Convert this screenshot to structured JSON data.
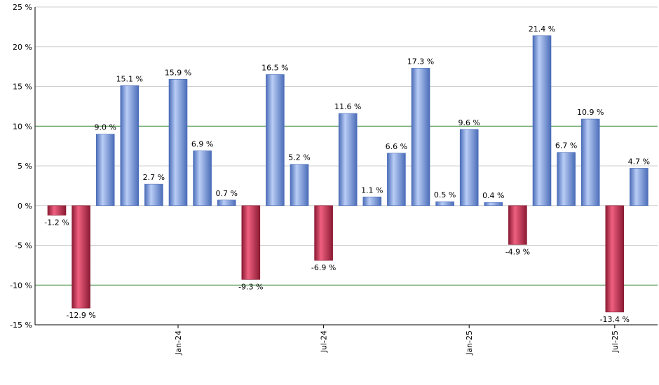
{
  "chart_data": {
    "type": "bar",
    "title": "",
    "xlabel": "",
    "ylabel": "",
    "ylim": [
      -15,
      25
    ],
    "y_ticks": [
      25,
      20,
      15,
      10,
      5,
      0,
      -5,
      -10,
      -15
    ],
    "y_tick_labels": [
      "25 %",
      "20 %",
      "15 %",
      "10 %",
      "5 %",
      "0 %",
      "-5 %",
      "-10 %",
      "-15 %"
    ],
    "highlight_lines": [
      10,
      -10
    ],
    "values": [
      -1.2,
      -12.9,
      9.0,
      15.1,
      2.7,
      15.9,
      6.9,
      0.7,
      -9.3,
      16.5,
      5.2,
      -6.9,
      11.6,
      1.1,
      6.6,
      17.3,
      0.5,
      9.6,
      0.4,
      -4.9,
      21.4,
      6.7,
      10.9,
      -13.4,
      4.7
    ],
    "value_labels": [
      "-1.2 %",
      "-12.9 %",
      "9.0 %",
      "15.1 %",
      "2.7 %",
      "15.9 %",
      "6.9 %",
      "0.7 %",
      "-9.3 %",
      "16.5 %",
      "5.2 %",
      "-6.9 %",
      "11.6 %",
      "1.1 %",
      "6.6 %",
      "17.3 %",
      "0.5 %",
      "9.6 %",
      "0.4 %",
      "-4.9 %",
      "21.4 %",
      "6.7 %",
      "10.9 %",
      "-13.4 %",
      "4.7 %"
    ],
    "x_tick_labels": [
      {
        "bar_index": 5,
        "label": "Jan-24"
      },
      {
        "bar_index": 11,
        "label": "Jul-24"
      },
      {
        "bar_index": 17,
        "label": "Jan-25"
      },
      {
        "bar_index": 23,
        "label": "Jul-25"
      }
    ],
    "grid": true,
    "colors": {
      "positive": "#7a9ee6",
      "positive_light": "#b9cdf5",
      "positive_dark": "#4a6cb8",
      "negative": "#c8304e",
      "negative_light": "#f06080",
      "negative_dark": "#8a1a33",
      "grid": "#cfcfcf",
      "highlight_line": "#3a8a3a",
      "axis": "#000000"
    }
  }
}
